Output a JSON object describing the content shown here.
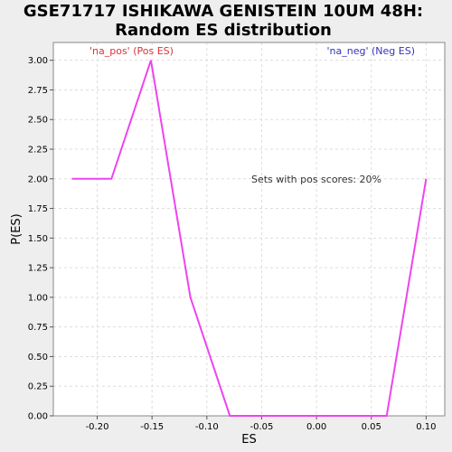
{
  "chart_data": {
    "type": "line",
    "title_lines": [
      "GSE71717 ISHIKAWA GENISTEIN 10UM 48H:",
      "Random ES distribution"
    ],
    "xlabel": "ES",
    "ylabel": "P(ES)",
    "xlim": [
      -0.24,
      0.117
    ],
    "ylim": [
      0,
      3.15
    ],
    "x_ticks": [
      -0.2,
      -0.15,
      -0.1,
      -0.05,
      0.0,
      0.05,
      0.1
    ],
    "x_tick_labels": [
      "-0.20",
      "-0.15",
      "-0.10",
      "-0.05",
      "0.00",
      "0.05",
      "0.10"
    ],
    "y_ticks": [
      0,
      0.25,
      0.5,
      0.75,
      1.0,
      1.25,
      1.5,
      1.75,
      2.0,
      2.25,
      2.5,
      2.75,
      3.0
    ],
    "y_tick_labels": [
      "0.00",
      "0.25",
      "0.50",
      "0.75",
      "1.00",
      "1.25",
      "1.50",
      "1.75",
      "2.00",
      "2.25",
      "2.50",
      "2.75",
      "3.00"
    ],
    "grid": true,
    "series": [
      {
        "color": "#ee44ee",
        "x": [
          -0.223,
          -0.187,
          -0.151,
          -0.115,
          -0.079,
          -0.043,
          -0.007,
          0.029,
          0.064,
          0.1
        ],
        "y": [
          2.0,
          2.0,
          3.0,
          1.0,
          0.0,
          0.0,
          0.0,
          0.0,
          0.0,
          2.0
        ]
      }
    ],
    "annotations": {
      "pos_label": "'na_pos' (Pos ES)",
      "neg_label": "'na_neg' (Neg ES)",
      "pos_color": "#dd3333",
      "neg_color": "#3333bb",
      "sets_text": "Sets with pos scores: 20%"
    }
  }
}
